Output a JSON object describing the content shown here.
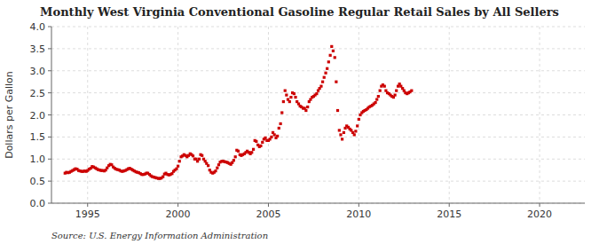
{
  "chart_data": {
    "type": "scatter",
    "title": "Monthly West Virginia Conventional Gasoline Regular Retail Sales by All Sellers",
    "ylabel": "Dollars per Gallon",
    "annotations": [
      "Source: U.S. Energy Information Administration"
    ],
    "color": "#cc0000",
    "marker": "square",
    "grid": true,
    "xlim": [
      1993.0,
      2022.5
    ],
    "ylim": [
      0.0,
      4.0
    ],
    "xticks": [
      1995,
      2000,
      2005,
      2010,
      2015,
      2020
    ],
    "yticks": [
      {
        "value": 0.0,
        "label": "0.0"
      },
      {
        "value": 0.5,
        "label": "0.5"
      },
      {
        "value": 1.0,
        "label": "1.0"
      },
      {
        "value": 1.5,
        "label": "1.5"
      },
      {
        "value": 2.0,
        "label": "2.0"
      },
      {
        "value": 2.5,
        "label": "2.5"
      },
      {
        "value": 3.0,
        "label": "3.0"
      },
      {
        "value": 3.5,
        "label": "3.5"
      },
      {
        "value": 4.0,
        "label": "4.0"
      }
    ],
    "x": [
      1993.75,
      1993.83,
      1993.92,
      1994.0,
      1994.08,
      1994.17,
      1994.25,
      1994.33,
      1994.42,
      1994.5,
      1994.58,
      1994.67,
      1994.75,
      1994.83,
      1994.92,
      1995.0,
      1995.08,
      1995.17,
      1995.25,
      1995.33,
      1995.42,
      1995.5,
      1995.58,
      1995.67,
      1995.75,
      1995.83,
      1995.92,
      1996.0,
      1996.08,
      1996.17,
      1996.25,
      1996.33,
      1996.42,
      1996.5,
      1996.58,
      1996.67,
      1996.75,
      1996.83,
      1996.92,
      1997.0,
      1997.08,
      1997.17,
      1997.25,
      1997.33,
      1997.42,
      1997.5,
      1997.58,
      1997.67,
      1997.75,
      1997.83,
      1997.92,
      1998.0,
      1998.08,
      1998.17,
      1998.25,
      1998.33,
      1998.42,
      1998.5,
      1998.58,
      1998.67,
      1998.75,
      1998.83,
      1998.92,
      1999.0,
      1999.08,
      1999.17,
      1999.25,
      1999.33,
      1999.42,
      1999.5,
      1999.58,
      1999.67,
      1999.75,
      1999.83,
      1999.92,
      2000.0,
      2000.08,
      2000.17,
      2000.25,
      2000.33,
      2000.42,
      2000.5,
      2000.58,
      2000.67,
      2000.75,
      2000.83,
      2000.92,
      2001.0,
      2001.08,
      2001.17,
      2001.25,
      2001.33,
      2001.42,
      2001.5,
      2001.58,
      2001.67,
      2001.75,
      2001.83,
      2001.92,
      2002.0,
      2002.08,
      2002.17,
      2002.25,
      2002.33,
      2002.42,
      2002.5,
      2002.58,
      2002.67,
      2002.75,
      2002.83,
      2002.92,
      2003.0,
      2003.08,
      2003.17,
      2003.25,
      2003.33,
      2003.42,
      2003.5,
      2003.58,
      2003.67,
      2003.75,
      2003.83,
      2003.92,
      2004.0,
      2004.08,
      2004.17,
      2004.25,
      2004.33,
      2004.42,
      2004.5,
      2004.58,
      2004.67,
      2004.75,
      2004.83,
      2004.92,
      2005.0,
      2005.08,
      2005.17,
      2005.25,
      2005.33,
      2005.42,
      2005.5,
      2005.58,
      2005.67,
      2005.75,
      2005.83,
      2005.92,
      2006.0,
      2006.08,
      2006.17,
      2006.25,
      2006.33,
      2006.42,
      2006.5,
      2006.58,
      2006.67,
      2006.75,
      2006.83,
      2006.92,
      2007.0,
      2007.08,
      2007.17,
      2007.25,
      2007.33,
      2007.42,
      2007.5,
      2007.58,
      2007.67,
      2007.75,
      2007.83,
      2007.92,
      2008.0,
      2008.08,
      2008.17,
      2008.25,
      2008.33,
      2008.42,
      2008.5,
      2008.58,
      2008.67,
      2008.75,
      2008.83,
      2008.92,
      2009.0,
      2009.08,
      2009.17,
      2009.25,
      2009.33,
      2009.42,
      2009.5,
      2009.58,
      2009.67,
      2009.75,
      2009.83,
      2009.92,
      2010.0,
      2010.08,
      2010.17,
      2010.25,
      2010.33,
      2010.42,
      2010.5,
      2010.58,
      2010.67,
      2010.75,
      2010.83,
      2010.92,
      2011.0,
      2011.08,
      2011.17,
      2011.25,
      2011.33,
      2011.42,
      2011.5,
      2011.58,
      2011.67,
      2011.75,
      2011.83,
      2011.92,
      2012.0,
      2012.08,
      2012.17,
      2012.25,
      2012.33,
      2012.42,
      2012.5,
      2012.58,
      2012.67,
      2012.75,
      2012.83,
      2012.92
    ],
    "values": [
      0.68,
      0.7,
      0.69,
      0.7,
      0.72,
      0.74,
      0.76,
      0.78,
      0.77,
      0.74,
      0.73,
      0.72,
      0.72,
      0.73,
      0.72,
      0.74,
      0.77,
      0.79,
      0.83,
      0.82,
      0.8,
      0.78,
      0.76,
      0.75,
      0.74,
      0.74,
      0.73,
      0.75,
      0.8,
      0.85,
      0.88,
      0.87,
      0.82,
      0.79,
      0.77,
      0.76,
      0.75,
      0.73,
      0.72,
      0.73,
      0.74,
      0.76,
      0.78,
      0.79,
      0.77,
      0.75,
      0.73,
      0.71,
      0.7,
      0.69,
      0.67,
      0.65,
      0.65,
      0.66,
      0.68,
      0.68,
      0.65,
      0.62,
      0.6,
      0.59,
      0.58,
      0.57,
      0.56,
      0.56,
      0.57,
      0.6,
      0.66,
      0.68,
      0.65,
      0.64,
      0.65,
      0.67,
      0.72,
      0.75,
      0.78,
      0.84,
      0.95,
      1.05,
      1.07,
      1.1,
      1.08,
      1.05,
      1.08,
      1.12,
      1.1,
      1.07,
      1.0,
      1.0,
      0.95,
      1.0,
      1.1,
      1.08,
      1.0,
      0.95,
      0.9,
      0.85,
      0.75,
      0.7,
      0.68,
      0.7,
      0.73,
      0.8,
      0.87,
      0.93,
      0.95,
      0.95,
      0.94,
      0.93,
      0.92,
      0.9,
      0.88,
      0.92,
      0.97,
      1.05,
      1.2,
      1.18,
      1.1,
      1.08,
      1.1,
      1.12,
      1.15,
      1.18,
      1.15,
      1.12,
      1.15,
      1.22,
      1.42,
      1.4,
      1.32,
      1.28,
      1.3,
      1.38,
      1.45,
      1.48,
      1.42,
      1.42,
      1.45,
      1.5,
      1.6,
      1.55,
      1.48,
      1.52,
      1.7,
      1.8,
      2.05,
      2.3,
      2.55,
      2.45,
      2.35,
      2.3,
      2.4,
      2.5,
      2.48,
      2.4,
      2.3,
      2.25,
      2.2,
      2.18,
      2.15,
      2.15,
      2.1,
      2.18,
      2.3,
      2.35,
      2.4,
      2.42,
      2.45,
      2.48,
      2.55,
      2.6,
      2.65,
      2.75,
      2.85,
      2.95,
      3.05,
      3.2,
      3.35,
      3.55,
      3.45,
      3.3,
      2.75,
      2.1,
      1.65,
      1.55,
      1.45,
      1.6,
      1.7,
      1.75,
      1.72,
      1.68,
      1.65,
      1.6,
      1.55,
      1.63,
      1.75,
      1.9,
      2.0,
      2.05,
      2.08,
      2.1,
      2.12,
      2.15,
      2.18,
      2.2,
      2.22,
      2.25,
      2.28,
      2.35,
      2.42,
      2.55,
      2.65,
      2.68,
      2.65,
      2.55,
      2.5,
      2.48,
      2.45,
      2.42,
      2.4,
      2.45,
      2.55,
      2.65,
      2.7,
      2.65,
      2.6,
      2.55,
      2.5,
      2.48,
      2.5,
      2.52,
      2.55
    ]
  }
}
